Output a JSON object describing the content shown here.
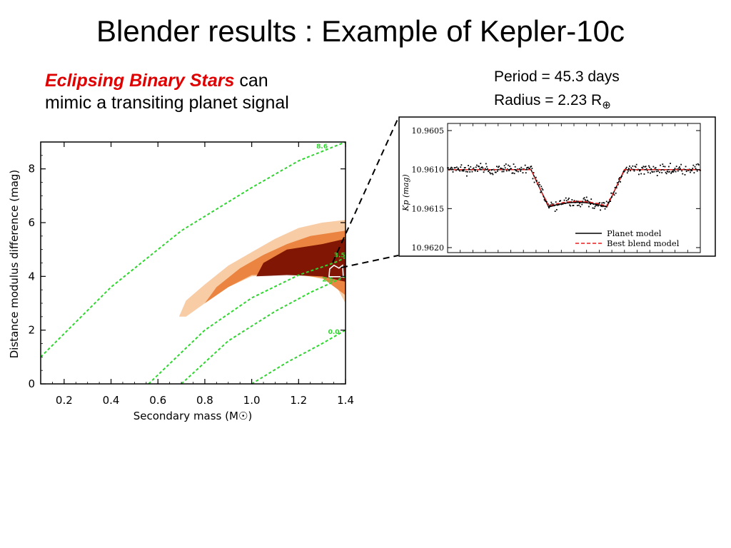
{
  "header": {
    "title": "Blender results : Example of Kepler-10c",
    "subtitle_highlight": "Eclipsing Binary Stars",
    "subtitle_rest_1": " can",
    "subtitle_rest_2": "mimic a transiting planet signal"
  },
  "params": {
    "period": "Period = 45.3 days",
    "radius_prefix": "Radius = 2.23 R",
    "radius_symbol": "⊕"
  },
  "colors": {
    "contour_green": "#2fd62f",
    "density_light": "#f8c9a0",
    "density_mid": "#e9803a",
    "density_dark": "#7a1000",
    "model_red": "#e02020"
  },
  "chart_data": [
    {
      "type": "heatmap",
      "xlabel": "Secondary mass (M☉)",
      "ylabel": "Distance modulus difference (mag)",
      "xlim": [
        0.1,
        1.4
      ],
      "ylim": [
        0,
        9
      ],
      "xticks": [
        "0.2",
        "0.4",
        "0.6",
        "0.8",
        "1.0",
        "1.2",
        "1.4"
      ],
      "yticks": [
        "0",
        "2",
        "4",
        "6",
        "8"
      ],
      "contours": [
        {
          "label": "8.6",
          "points": [
            [
              0.1,
              1.0
            ],
            [
              0.4,
              3.6
            ],
            [
              0.7,
              5.7
            ],
            [
              1.0,
              7.3
            ],
            [
              1.2,
              8.3
            ],
            [
              1.4,
              9.0
            ]
          ]
        },
        {
          "label": "3.5",
          "points": [
            [
              0.56,
              0.0
            ],
            [
              0.8,
              2.0
            ],
            [
              1.0,
              3.2
            ],
            [
              1.2,
              4.05
            ],
            [
              1.35,
              4.5
            ],
            [
              1.4,
              4.7
            ]
          ]
        },
        {
          "label": "2.5",
          "points": [
            [
              0.7,
              0.0
            ],
            [
              0.9,
              1.6
            ],
            [
              1.1,
              2.7
            ],
            [
              1.25,
              3.4
            ],
            [
              1.4,
              4.0
            ]
          ]
        },
        {
          "label": "0.0",
          "points": [
            [
              1.0,
              0.0
            ],
            [
              1.15,
              0.8
            ],
            [
              1.3,
              1.5
            ],
            [
              1.4,
              2.0
            ]
          ]
        }
      ],
      "density_levels": [
        {
          "level": "light",
          "outline": [
            [
              0.69,
              2.5
            ],
            [
              0.72,
              3.1
            ],
            [
              0.8,
              3.7
            ],
            [
              0.9,
              4.4
            ],
            [
              1.0,
              4.9
            ],
            [
              1.1,
              5.4
            ],
            [
              1.2,
              5.8
            ],
            [
              1.3,
              6.0
            ],
            [
              1.4,
              6.1
            ],
            [
              1.4,
              3.0
            ],
            [
              1.35,
              3.8
            ],
            [
              1.2,
              4.1
            ],
            [
              1.0,
              4.0
            ],
            [
              0.9,
              3.6
            ],
            [
              0.8,
              3.0
            ],
            [
              0.72,
              2.5
            ]
          ]
        },
        {
          "level": "mid",
          "outline": [
            [
              0.8,
              3.0
            ],
            [
              0.85,
              3.6
            ],
            [
              0.95,
              4.3
            ],
            [
              1.05,
              4.8
            ],
            [
              1.15,
              5.2
            ],
            [
              1.25,
              5.5
            ],
            [
              1.4,
              5.7
            ],
            [
              1.4,
              3.3
            ],
            [
              1.3,
              3.95
            ],
            [
              1.15,
              4.1
            ],
            [
              1.0,
              4.05
            ],
            [
              0.9,
              3.6
            ]
          ]
        },
        {
          "level": "dark",
          "outline": [
            [
              1.02,
              4.0
            ],
            [
              1.05,
              4.5
            ],
            [
              1.15,
              5.0
            ],
            [
              1.3,
              5.2
            ],
            [
              1.4,
              5.4
            ],
            [
              1.4,
              3.8
            ],
            [
              1.3,
              4.0
            ],
            [
              1.15,
              4.05
            ]
          ]
        }
      ],
      "marker": {
        "x": 1.36,
        "y": 4.2
      }
    },
    {
      "type": "scatter",
      "ylabel": "Kp (mag)",
      "ylim": [
        10.9605,
        10.962
      ],
      "yticks": [
        "10.9605",
        "10.9610",
        "10.9615",
        "10.9620"
      ],
      "legend": [
        "Planet model",
        "Best blend model"
      ],
      "legend_position": "bottom-right",
      "series": [
        {
          "name": "Planet model",
          "color": "#000000",
          "style": "solid"
        },
        {
          "name": "Best blend model",
          "color": "#e02020",
          "style": "dashed"
        }
      ],
      "model": {
        "baseline": 10.961,
        "depth": 10.96148,
        "ingress_start": 0.33,
        "ingress_end": 0.4,
        "egress_start": 0.63,
        "egress_end": 0.7
      }
    }
  ]
}
